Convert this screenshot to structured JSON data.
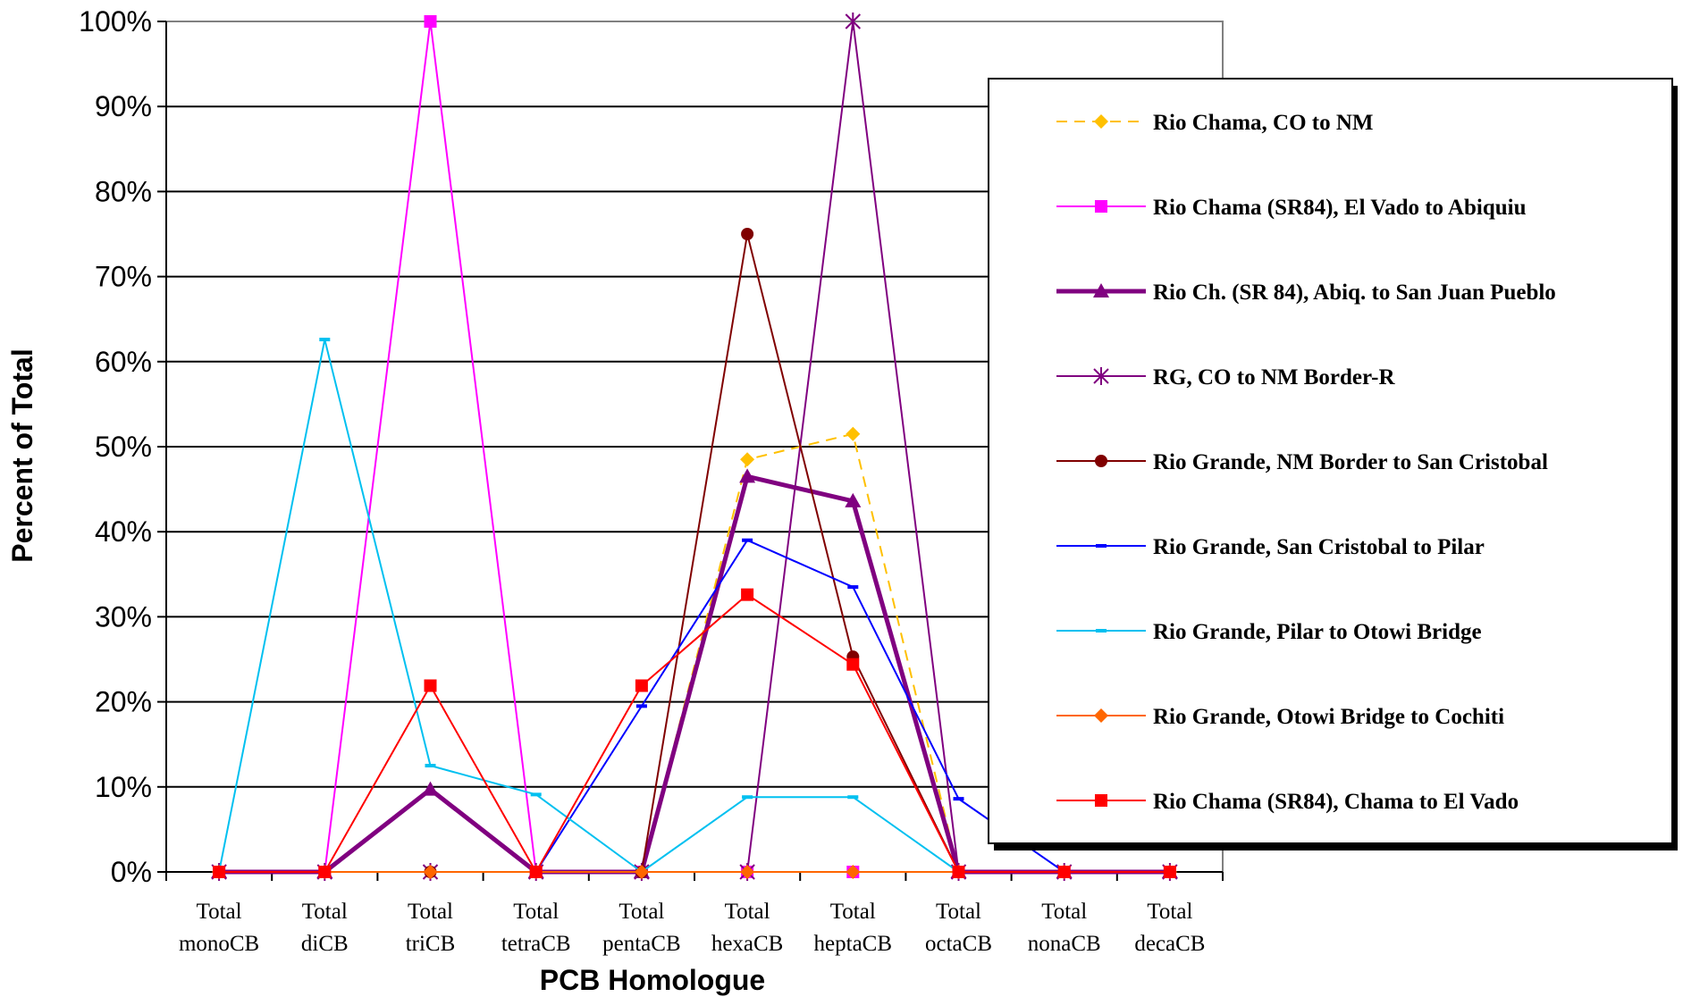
{
  "chart_data": {
    "type": "line",
    "title": "",
    "xlabel": "PCB Homologue",
    "ylabel": "Percent of Total",
    "ylim": [
      0,
      100
    ],
    "yticks": [
      "0%",
      "10%",
      "20%",
      "30%",
      "40%",
      "50%",
      "60%",
      "70%",
      "80%",
      "90%",
      "100%"
    ],
    "categories": [
      [
        "Total",
        "monoCB"
      ],
      [
        "Total",
        "diCB"
      ],
      [
        "Total",
        "triCB"
      ],
      [
        "Total",
        "tetraCB"
      ],
      [
        "Total",
        "pentaCB"
      ],
      [
        "Total",
        "hexaCB"
      ],
      [
        "Total",
        "heptaCB"
      ],
      [
        "Total",
        "octaCB"
      ],
      [
        "Total",
        "nonaCB"
      ],
      [
        "Total",
        "decaCB"
      ]
    ],
    "grid": "horizontal",
    "legend_position": "right",
    "series": [
      {
        "name": "Rio Chama, CO to NM",
        "color": "#FFC000",
        "dash": "dashed",
        "marker": "diamond",
        "values": [
          0,
          0,
          0,
          0,
          0,
          48.5,
          51.5,
          0,
          0,
          0
        ]
      },
      {
        "name": "Rio Chama (SR84), El Vado to Abiquiu",
        "color": "#FF00FF",
        "marker": "square",
        "values": [
          0,
          0,
          100,
          0,
          0,
          0,
          0,
          0,
          0,
          0
        ]
      },
      {
        "name": "Rio Ch. (SR 84), Abiq. to San Juan Pueblo",
        "color": "#800080",
        "width": "bold",
        "marker": "triangle",
        "values": [
          0,
          0,
          9.7,
          0,
          0,
          46.5,
          43.6,
          0,
          0,
          0
        ]
      },
      {
        "name": "RG, CO to NM Border-R",
        "color": "#800080",
        "marker": "star",
        "values": [
          0,
          0,
          0,
          0,
          0,
          0,
          100,
          0,
          0,
          0
        ]
      },
      {
        "name": "Rio Grande, NM Border to San Cristobal",
        "color": "#800000",
        "marker": "circle",
        "values": [
          0,
          0,
          0,
          0,
          0,
          75,
          25.3,
          0,
          0,
          0
        ]
      },
      {
        "name": "Rio Grande, San Cristobal to Pilar",
        "color": "#0000FF",
        "marker": "dash",
        "values": [
          0,
          0,
          0,
          0,
          19.5,
          39,
          33.5,
          8.6,
          0,
          0
        ]
      },
      {
        "name": "Rio Grande, Pilar to Otowi Bridge",
        "color": "#00C0F0",
        "marker": "dash",
        "values": [
          0,
          62.6,
          12.5,
          9.1,
          0,
          8.8,
          8.8,
          0,
          0,
          0
        ]
      },
      {
        "name": "Rio Grande, Otowi Bridge to Cochiti",
        "color": "#FF6600",
        "marker": "diamond",
        "values": [
          0,
          0,
          0,
          0,
          0,
          0,
          0,
          0,
          0,
          0
        ]
      },
      {
        "name": "Rio Chama (SR84), Chama to El Vado",
        "color": "#FF0000",
        "marker": "square",
        "values": [
          0,
          0,
          21.9,
          0,
          21.9,
          32.6,
          24.4,
          0,
          0,
          0
        ]
      }
    ]
  }
}
